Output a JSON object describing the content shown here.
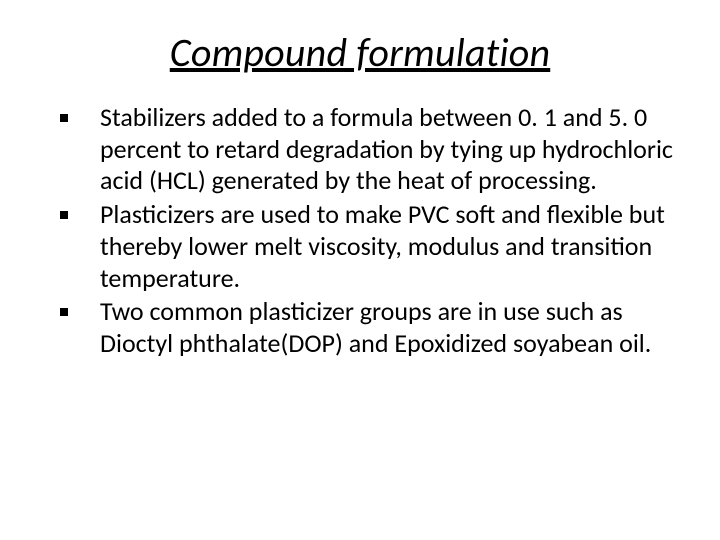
{
  "title": "Compound formulation",
  "bullets": [
    "Stabilizers added to a formula between 0. 1 and 5. 0 percent to retard degradation by tying up hydrochloric acid (HCL) generated by the heat of processing.",
    "Plasticizers are used to make PVC soft and flexible but thereby lower melt viscosity, modulus and transition temperature.",
    "Two common plasticizer groups are in use such as Dioctyl phthalate(DOP) and Epoxidized soyabean oil."
  ]
}
